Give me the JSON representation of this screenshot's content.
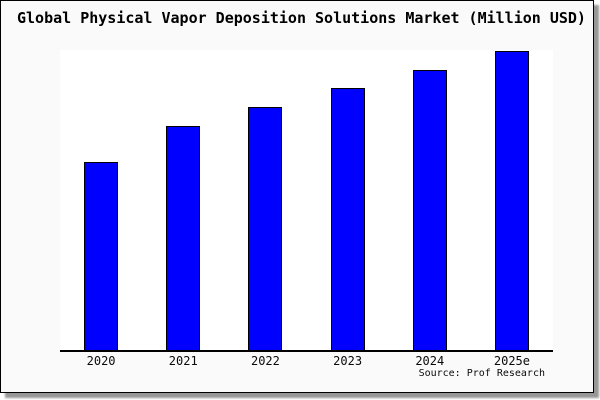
{
  "chart_data": {
    "type": "bar",
    "title": "Global Physical Vapor Deposition Solutions Market (Million USD)",
    "categories": [
      "2020",
      "2021",
      "2022",
      "2023",
      "2024",
      "2025e"
    ],
    "values": [
      62.6,
      74.8,
      81.1,
      87.4,
      93.4,
      99.7
    ],
    "value_note": "y-axis has no visible ticks or labels; values estimated as percent of plot height (2025e bar reaches full scale)",
    "xlabel": "",
    "ylabel": "",
    "ylim": [
      0,
      100
    ],
    "grid": false,
    "legend": false,
    "bar_color": "#0000ff",
    "bar_edge_color": "#000000"
  },
  "footer": {
    "source": "Source: Prof Research"
  },
  "colors": {
    "frame_background": "#fafafa",
    "plot_background": "#ffffff",
    "frame_border": "#000000",
    "shadow": "#979797",
    "text": "#000000"
  }
}
